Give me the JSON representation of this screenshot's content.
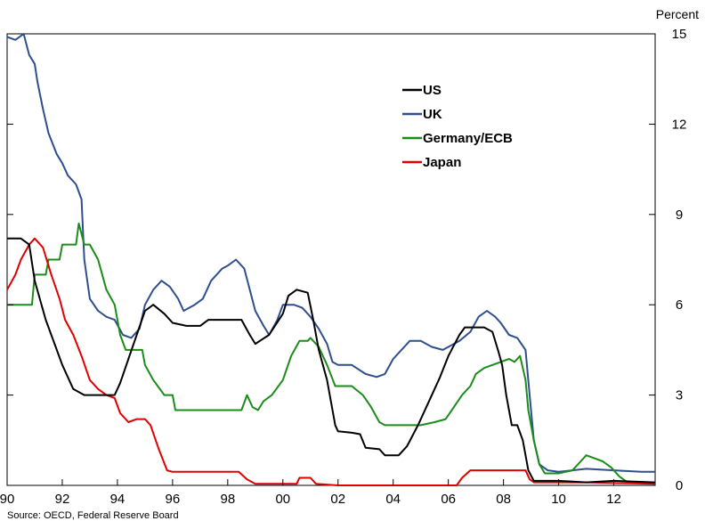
{
  "chart_data": {
    "type": "line",
    "unit_label": "Percent",
    "source": "Source: OECD, Federal Reserve Board",
    "xlim": [
      1990.0,
      2013.5
    ],
    "ylim": [
      0,
      15
    ],
    "x_ticks": [
      {
        "value": 1990,
        "label": "90"
      },
      {
        "value": 1992,
        "label": "92"
      },
      {
        "value": 1994,
        "label": "94"
      },
      {
        "value": 1996,
        "label": "96"
      },
      {
        "value": 1998,
        "label": "98"
      },
      {
        "value": 2000,
        "label": "00"
      },
      {
        "value": 2002,
        "label": "02"
      },
      {
        "value": 2004,
        "label": "04"
      },
      {
        "value": 2006,
        "label": "06"
      },
      {
        "value": 2008,
        "label": "08"
      },
      {
        "value": 2010,
        "label": "10"
      },
      {
        "value": 2012,
        "label": "12"
      }
    ],
    "y_ticks": [
      0,
      3,
      6,
      9,
      12,
      15
    ],
    "legend_placement": "upper-center",
    "series": [
      {
        "name": "US",
        "color": "#000000",
        "points": [
          [
            1990.0,
            8.2
          ],
          [
            1990.5,
            8.2
          ],
          [
            1990.8,
            8.0
          ],
          [
            1991.0,
            6.8
          ],
          [
            1991.4,
            5.5
          ],
          [
            1991.8,
            4.5
          ],
          [
            1992.0,
            4.0
          ],
          [
            1992.4,
            3.2
          ],
          [
            1992.8,
            3.0
          ],
          [
            1993.0,
            3.0
          ],
          [
            1993.5,
            3.0
          ],
          [
            1993.9,
            3.0
          ],
          [
            1994.1,
            3.4
          ],
          [
            1994.4,
            4.2
          ],
          [
            1994.7,
            5.0
          ],
          [
            1995.0,
            5.8
          ],
          [
            1995.3,
            6.0
          ],
          [
            1995.7,
            5.7
          ],
          [
            1996.0,
            5.4
          ],
          [
            1996.5,
            5.3
          ],
          [
            1997.0,
            5.3
          ],
          [
            1997.3,
            5.5
          ],
          [
            1997.8,
            5.5
          ],
          [
            1998.5,
            5.5
          ],
          [
            1998.8,
            5.0
          ],
          [
            1999.0,
            4.7
          ],
          [
            1999.5,
            5.0
          ],
          [
            2000.0,
            5.7
          ],
          [
            2000.2,
            6.3
          ],
          [
            2000.5,
            6.5
          ],
          [
            2000.9,
            6.4
          ],
          [
            2001.1,
            5.5
          ],
          [
            2001.3,
            4.5
          ],
          [
            2001.6,
            3.5
          ],
          [
            2001.9,
            2.0
          ],
          [
            2002.0,
            1.8
          ],
          [
            2002.5,
            1.75
          ],
          [
            2002.8,
            1.7
          ],
          [
            2003.0,
            1.25
          ],
          [
            2003.5,
            1.2
          ],
          [
            2003.7,
            1.0
          ],
          [
            2004.2,
            1.0
          ],
          [
            2004.5,
            1.3
          ],
          [
            2004.9,
            2.0
          ],
          [
            2005.3,
            2.8
          ],
          [
            2005.7,
            3.6
          ],
          [
            2006.0,
            4.3
          ],
          [
            2006.4,
            5.0
          ],
          [
            2006.6,
            5.25
          ],
          [
            2007.3,
            5.25
          ],
          [
            2007.6,
            5.1
          ],
          [
            2007.8,
            4.5
          ],
          [
            2007.95,
            4.0
          ],
          [
            2008.1,
            3.0
          ],
          [
            2008.3,
            2.0
          ],
          [
            2008.5,
            2.0
          ],
          [
            2008.7,
            1.5
          ],
          [
            2008.9,
            0.5
          ],
          [
            2009.1,
            0.15
          ],
          [
            2010.0,
            0.15
          ],
          [
            2011.0,
            0.1
          ],
          [
            2012.0,
            0.15
          ],
          [
            2013.5,
            0.1
          ]
        ]
      },
      {
        "name": "UK",
        "color": "#2e4f8c",
        "points": [
          [
            1990.0,
            14.9
          ],
          [
            1990.3,
            14.8
          ],
          [
            1990.6,
            15.0
          ],
          [
            1990.8,
            14.3
          ],
          [
            1991.0,
            14.0
          ],
          [
            1991.1,
            13.4
          ],
          [
            1991.3,
            12.5
          ],
          [
            1991.5,
            11.7
          ],
          [
            1991.8,
            11.0
          ],
          [
            1992.0,
            10.7
          ],
          [
            1992.2,
            10.3
          ],
          [
            1992.5,
            10.0
          ],
          [
            1992.7,
            9.5
          ],
          [
            1992.8,
            7.5
          ],
          [
            1993.0,
            6.2
          ],
          [
            1993.3,
            5.8
          ],
          [
            1993.6,
            5.6
          ],
          [
            1993.9,
            5.5
          ],
          [
            1994.2,
            5.0
          ],
          [
            1994.5,
            4.9
          ],
          [
            1994.8,
            5.2
          ],
          [
            1995.0,
            6.0
          ],
          [
            1995.3,
            6.5
          ],
          [
            1995.6,
            6.8
          ],
          [
            1995.9,
            6.6
          ],
          [
            1996.2,
            6.2
          ],
          [
            1996.4,
            5.8
          ],
          [
            1996.8,
            6.0
          ],
          [
            1997.1,
            6.2
          ],
          [
            1997.4,
            6.8
          ],
          [
            1997.8,
            7.2
          ],
          [
            1998.0,
            7.3
          ],
          [
            1998.3,
            7.5
          ],
          [
            1998.6,
            7.2
          ],
          [
            1998.8,
            6.5
          ],
          [
            1999.0,
            5.8
          ],
          [
            1999.3,
            5.3
          ],
          [
            1999.5,
            5.0
          ],
          [
            1999.8,
            5.5
          ],
          [
            2000.0,
            6.0
          ],
          [
            2000.4,
            6.0
          ],
          [
            2000.7,
            5.9
          ],
          [
            2001.0,
            5.6
          ],
          [
            2001.3,
            5.2
          ],
          [
            2001.6,
            4.7
          ],
          [
            2001.8,
            4.1
          ],
          [
            2002.0,
            4.0
          ],
          [
            2002.5,
            4.0
          ],
          [
            2003.0,
            3.7
          ],
          [
            2003.4,
            3.6
          ],
          [
            2003.7,
            3.7
          ],
          [
            2004.0,
            4.2
          ],
          [
            2004.3,
            4.5
          ],
          [
            2004.6,
            4.8
          ],
          [
            2005.0,
            4.8
          ],
          [
            2005.4,
            4.6
          ],
          [
            2005.8,
            4.5
          ],
          [
            2006.0,
            4.6
          ],
          [
            2006.4,
            4.8
          ],
          [
            2006.8,
            5.1
          ],
          [
            2007.1,
            5.6
          ],
          [
            2007.4,
            5.8
          ],
          [
            2007.7,
            5.6
          ],
          [
            2007.9,
            5.4
          ],
          [
            2008.2,
            5.0
          ],
          [
            2008.5,
            4.9
          ],
          [
            2008.8,
            4.5
          ],
          [
            2008.95,
            3.0
          ],
          [
            2009.1,
            1.5
          ],
          [
            2009.3,
            0.7
          ],
          [
            2009.6,
            0.5
          ],
          [
            2010.0,
            0.45
          ],
          [
            2011.0,
            0.55
          ],
          [
            2012.0,
            0.5
          ],
          [
            2013.0,
            0.45
          ],
          [
            2013.5,
            0.45
          ]
        ]
      },
      {
        "name": "Germany/ECB",
        "color": "#1a8c1a",
        "points": [
          [
            1990.0,
            6.0
          ],
          [
            1990.9,
            6.0
          ],
          [
            1991.0,
            7.0
          ],
          [
            1991.4,
            7.0
          ],
          [
            1991.5,
            7.5
          ],
          [
            1991.9,
            7.5
          ],
          [
            1992.0,
            8.0
          ],
          [
            1992.5,
            8.0
          ],
          [
            1992.6,
            8.7
          ],
          [
            1992.8,
            8.0
          ],
          [
            1993.0,
            8.0
          ],
          [
            1993.3,
            7.5
          ],
          [
            1993.6,
            6.5
          ],
          [
            1993.9,
            6.0
          ],
          [
            1994.1,
            5.0
          ],
          [
            1994.3,
            4.5
          ],
          [
            1994.7,
            4.5
          ],
          [
            1994.9,
            4.5
          ],
          [
            1995.0,
            4.0
          ],
          [
            1995.3,
            3.5
          ],
          [
            1995.7,
            3.0
          ],
          [
            1996.0,
            3.0
          ],
          [
            1996.1,
            2.5
          ],
          [
            1997.0,
            2.5
          ],
          [
            1998.0,
            2.5
          ],
          [
            1998.5,
            2.5
          ],
          [
            1998.7,
            3.0
          ],
          [
            1998.9,
            2.6
          ],
          [
            1999.1,
            2.5
          ],
          [
            1999.3,
            2.8
          ],
          [
            1999.6,
            3.0
          ],
          [
            2000.0,
            3.5
          ],
          [
            2000.3,
            4.3
          ],
          [
            2000.6,
            4.8
          ],
          [
            2000.9,
            4.8
          ],
          [
            2001.0,
            4.9
          ],
          [
            2001.3,
            4.6
          ],
          [
            2001.6,
            4.0
          ],
          [
            2001.9,
            3.3
          ],
          [
            2002.0,
            3.3
          ],
          [
            2002.5,
            3.3
          ],
          [
            2002.9,
            3.0
          ],
          [
            2003.2,
            2.6
          ],
          [
            2003.5,
            2.1
          ],
          [
            2003.7,
            2.0
          ],
          [
            2004.0,
            2.0
          ],
          [
            2004.5,
            2.0
          ],
          [
            2005.0,
            2.0
          ],
          [
            2005.5,
            2.1
          ],
          [
            2005.9,
            2.2
          ],
          [
            2006.2,
            2.6
          ],
          [
            2006.5,
            3.0
          ],
          [
            2006.8,
            3.3
          ],
          [
            2007.0,
            3.7
          ],
          [
            2007.3,
            3.9
          ],
          [
            2007.6,
            4.0
          ],
          [
            2007.9,
            4.1
          ],
          [
            2008.2,
            4.2
          ],
          [
            2008.4,
            4.1
          ],
          [
            2008.6,
            4.3
          ],
          [
            2008.8,
            3.5
          ],
          [
            2008.9,
            2.5
          ],
          [
            2009.1,
            1.5
          ],
          [
            2009.3,
            0.7
          ],
          [
            2009.5,
            0.4
          ],
          [
            2010.0,
            0.4
          ],
          [
            2010.5,
            0.5
          ],
          [
            2010.8,
            0.8
          ],
          [
            2011.0,
            1.0
          ],
          [
            2011.3,
            0.9
          ],
          [
            2011.6,
            0.8
          ],
          [
            2011.9,
            0.6
          ],
          [
            2012.2,
            0.3
          ],
          [
            2012.5,
            0.1
          ],
          [
            2013.5,
            0.05
          ]
        ]
      },
      {
        "name": "Japan",
        "color": "#e00000",
        "points": [
          [
            1990.0,
            6.5
          ],
          [
            1990.3,
            7.0
          ],
          [
            1990.5,
            7.5
          ],
          [
            1990.8,
            8.0
          ],
          [
            1991.0,
            8.2
          ],
          [
            1991.3,
            7.9
          ],
          [
            1991.6,
            7.0
          ],
          [
            1991.9,
            6.2
          ],
          [
            1992.1,
            5.5
          ],
          [
            1992.4,
            5.0
          ],
          [
            1992.7,
            4.3
          ],
          [
            1993.0,
            3.5
          ],
          [
            1993.3,
            3.2
          ],
          [
            1993.6,
            3.0
          ],
          [
            1993.9,
            2.9
          ],
          [
            1994.1,
            2.4
          ],
          [
            1994.4,
            2.1
          ],
          [
            1994.7,
            2.2
          ],
          [
            1995.0,
            2.2
          ],
          [
            1995.2,
            2.0
          ],
          [
            1995.5,
            1.2
          ],
          [
            1995.8,
            0.5
          ],
          [
            1996.0,
            0.45
          ],
          [
            1997.0,
            0.45
          ],
          [
            1998.0,
            0.45
          ],
          [
            1998.4,
            0.45
          ],
          [
            1998.7,
            0.2
          ],
          [
            1999.0,
            0.05
          ],
          [
            2000.5,
            0.05
          ],
          [
            2000.6,
            0.25
          ],
          [
            2001.0,
            0.25
          ],
          [
            2001.2,
            0.05
          ],
          [
            2002.0,
            0.0
          ],
          [
            2004.0,
            0.0
          ],
          [
            2006.3,
            0.0
          ],
          [
            2006.5,
            0.25
          ],
          [
            2006.8,
            0.5
          ],
          [
            2008.0,
            0.5
          ],
          [
            2008.8,
            0.5
          ],
          [
            2008.95,
            0.2
          ],
          [
            2009.1,
            0.1
          ],
          [
            2010.0,
            0.1
          ],
          [
            2011.0,
            0.1
          ],
          [
            2013.5,
            0.05
          ]
        ]
      }
    ]
  }
}
